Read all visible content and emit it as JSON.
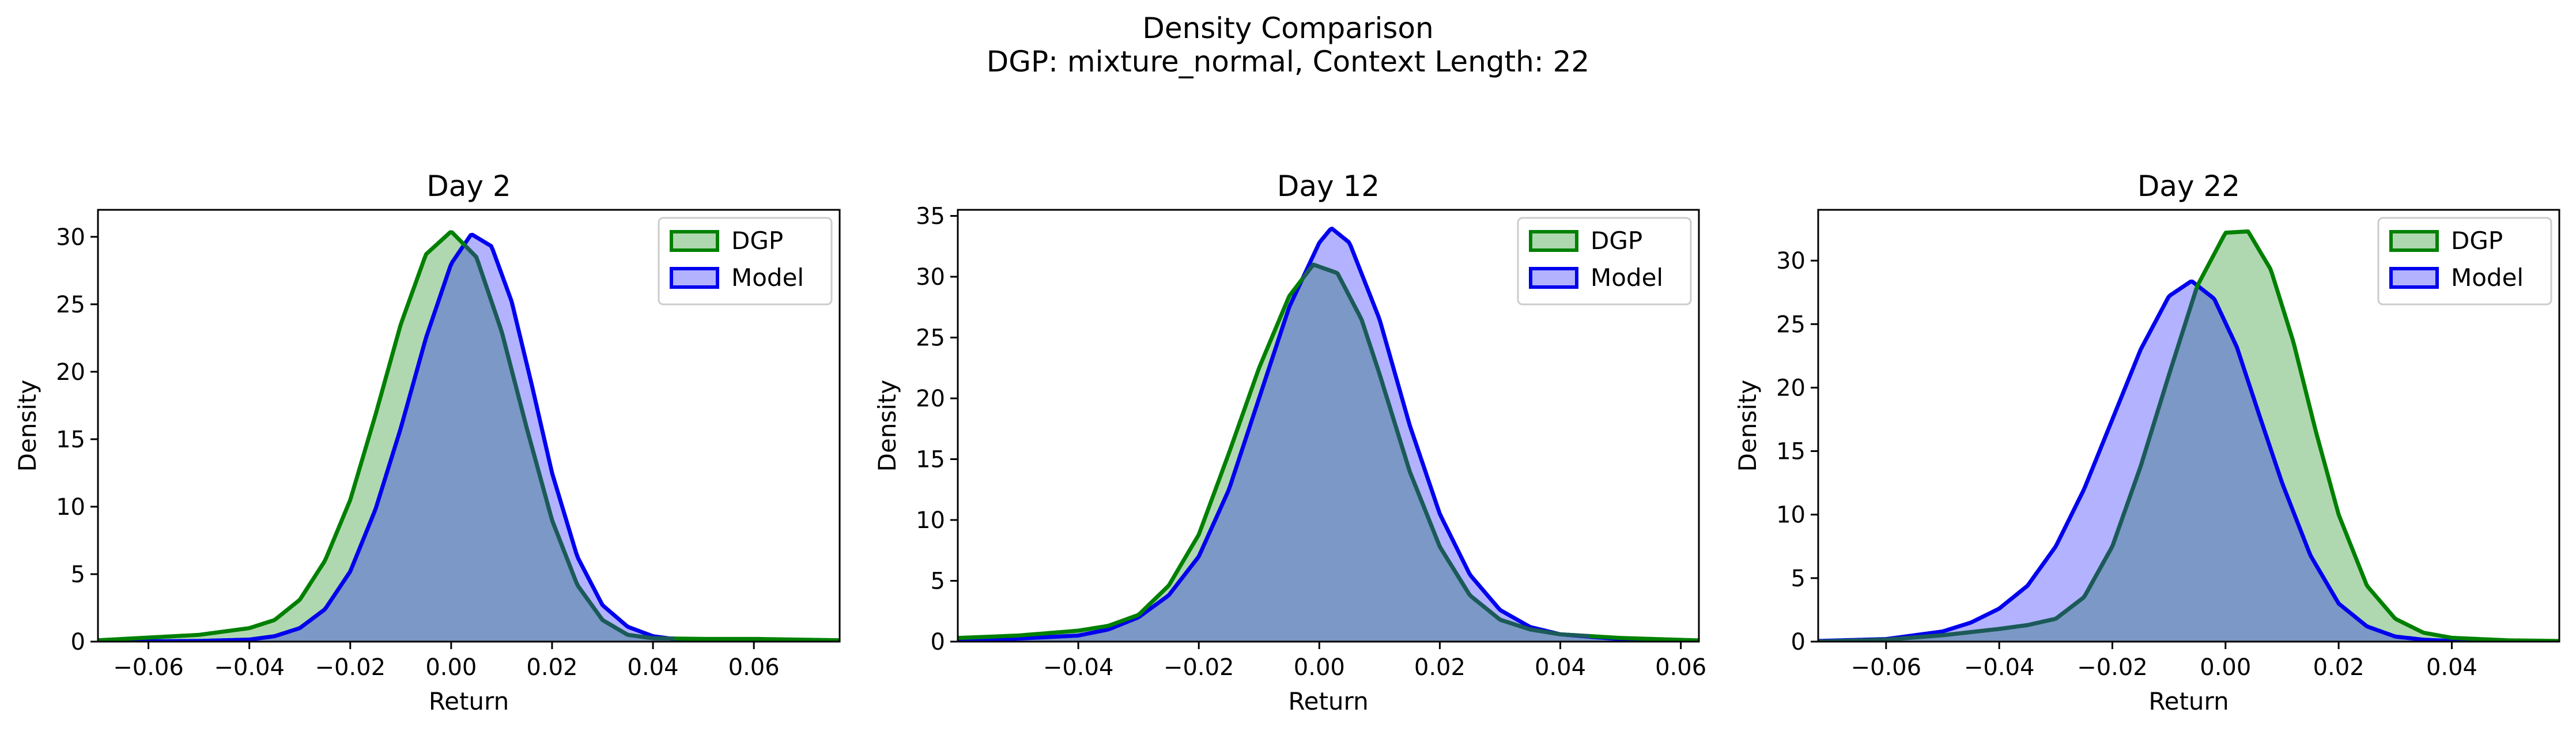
{
  "figure": {
    "title_line1": "Density Comparison",
    "title_line2": "DGP: mixture_normal, Context Length: 22"
  },
  "colors": {
    "dgp_line": "#008000",
    "dgp_fill": "#b0d8b0",
    "model_line": "#0000ee",
    "model_fill": "#b2b2ff",
    "overlap_fill": "#7b98c6",
    "overlap_line_dgp": "#1c5a5a"
  },
  "chart_data": [
    {
      "type": "area",
      "title": "Day 2",
      "xlabel": "Return",
      "ylabel": "Density",
      "xlim": [
        -0.07,
        0.077
      ],
      "ylim": [
        0,
        32
      ],
      "xticks": [
        -0.06,
        -0.04,
        -0.02,
        0.0,
        0.02,
        0.04,
        0.06
      ],
      "xtick_labels": [
        "−0.06",
        "−0.04",
        "−0.02",
        "0.00",
        "0.02",
        "0.04",
        "0.06"
      ],
      "yticks": [
        0,
        5,
        10,
        15,
        20,
        25,
        30
      ],
      "ytick_labels": [
        "0",
        "5",
        "10",
        "15",
        "20",
        "25",
        "30"
      ],
      "legend": {
        "position": "top-right",
        "entries": [
          "DGP",
          "Model"
        ]
      },
      "series": [
        {
          "name": "DGP",
          "x": [
            -0.07,
            -0.06,
            -0.05,
            -0.04,
            -0.035,
            -0.03,
            -0.025,
            -0.02,
            -0.015,
            -0.01,
            -0.005,
            0.0,
            0.005,
            0.01,
            0.015,
            0.02,
            0.025,
            0.03,
            0.035,
            0.04,
            0.05,
            0.06,
            0.077
          ],
          "y": [
            0.1,
            0.3,
            0.5,
            1.0,
            1.6,
            3.1,
            6.0,
            10.5,
            16.8,
            23.5,
            28.7,
            30.4,
            28.5,
            23.0,
            15.8,
            9.0,
            4.2,
            1.6,
            0.5,
            0.25,
            0.2,
            0.2,
            0.1
          ]
        },
        {
          "name": "Model",
          "x": [
            -0.07,
            -0.05,
            -0.04,
            -0.035,
            -0.03,
            -0.025,
            -0.02,
            -0.015,
            -0.01,
            -0.005,
            0.0,
            0.004,
            0.008,
            0.012,
            0.016,
            0.02,
            0.025,
            0.03,
            0.035,
            0.04,
            0.045,
            0.05,
            0.077
          ],
          "y": [
            0.0,
            0.05,
            0.15,
            0.4,
            1.0,
            2.4,
            5.2,
            9.8,
            15.8,
            22.5,
            28.0,
            30.2,
            29.3,
            25.2,
            19.0,
            12.5,
            6.3,
            2.7,
            1.1,
            0.4,
            0.15,
            0.05,
            0.0
          ]
        }
      ]
    },
    {
      "type": "area",
      "title": "Day 12",
      "xlabel": "Return",
      "ylabel": "Density",
      "xlim": [
        -0.06,
        0.063
      ],
      "ylim": [
        0,
        35.5
      ],
      "xticks": [
        -0.04,
        -0.02,
        0.0,
        0.02,
        0.04,
        0.06
      ],
      "xtick_labels": [
        "−0.04",
        "−0.02",
        "0.00",
        "0.02",
        "0.04",
        "0.06"
      ],
      "yticks": [
        0,
        5,
        10,
        15,
        20,
        25,
        30,
        35
      ],
      "ytick_labels": [
        "0",
        "5",
        "10",
        "15",
        "20",
        "25",
        "30",
        "35"
      ],
      "legend": {
        "position": "top-right",
        "entries": [
          "DGP",
          "Model"
        ]
      },
      "series": [
        {
          "name": "DGP",
          "x": [
            -0.06,
            -0.05,
            -0.04,
            -0.035,
            -0.03,
            -0.025,
            -0.02,
            -0.015,
            -0.01,
            -0.005,
            -0.001,
            0.003,
            0.007,
            0.01,
            0.015,
            0.02,
            0.025,
            0.03,
            0.035,
            0.04,
            0.05,
            0.063
          ],
          "y": [
            0.3,
            0.5,
            0.9,
            1.3,
            2.2,
            4.6,
            8.8,
            15.5,
            22.5,
            28.4,
            31.0,
            30.3,
            26.5,
            22.0,
            14.0,
            7.8,
            3.8,
            1.8,
            1.0,
            0.6,
            0.3,
            0.1
          ]
        },
        {
          "name": "Model",
          "x": [
            -0.06,
            -0.04,
            -0.035,
            -0.03,
            -0.025,
            -0.02,
            -0.015,
            -0.01,
            -0.005,
            0.0,
            0.002,
            0.005,
            0.01,
            0.015,
            0.02,
            0.025,
            0.03,
            0.035,
            0.04,
            0.05,
            0.063
          ],
          "y": [
            0.0,
            0.5,
            1.0,
            2.0,
            3.8,
            7.0,
            12.5,
            20.0,
            27.5,
            32.8,
            34.0,
            32.8,
            26.5,
            17.8,
            10.5,
            5.5,
            2.6,
            1.2,
            0.6,
            0.2,
            0.05
          ]
        }
      ]
    },
    {
      "type": "area",
      "title": "Day 22",
      "xlabel": "Return",
      "ylabel": "Density",
      "xlim": [
        -0.072,
        0.059
      ],
      "ylim": [
        0,
        34
      ],
      "xticks": [
        -0.06,
        -0.04,
        -0.02,
        0.0,
        0.02,
        0.04
      ],
      "xtick_labels": [
        "−0.06",
        "−0.04",
        "−0.02",
        "0.00",
        "0.02",
        "0.04"
      ],
      "yticks": [
        0,
        5,
        10,
        15,
        20,
        25,
        30
      ],
      "ytick_labels": [
        "0",
        "5",
        "10",
        "15",
        "20",
        "25",
        "30"
      ],
      "legend": {
        "position": "top-right",
        "entries": [
          "DGP",
          "Model"
        ]
      },
      "series": [
        {
          "name": "DGP",
          "x": [
            -0.072,
            -0.06,
            -0.05,
            -0.04,
            -0.035,
            -0.03,
            -0.025,
            -0.02,
            -0.015,
            -0.01,
            -0.005,
            0.0,
            0.004,
            0.008,
            0.012,
            0.016,
            0.02,
            0.025,
            0.03,
            0.035,
            0.04,
            0.05,
            0.059
          ],
          "y": [
            0.0,
            0.15,
            0.5,
            1.0,
            1.3,
            1.8,
            3.5,
            7.5,
            13.8,
            21.0,
            28.0,
            32.2,
            32.3,
            29.3,
            23.6,
            16.5,
            10.0,
            4.4,
            1.8,
            0.7,
            0.3,
            0.1,
            0.05
          ]
        },
        {
          "name": "Model",
          "x": [
            -0.072,
            -0.06,
            -0.05,
            -0.045,
            -0.04,
            -0.035,
            -0.03,
            -0.025,
            -0.02,
            -0.015,
            -0.01,
            -0.006,
            -0.002,
            0.002,
            0.006,
            0.01,
            0.015,
            0.02,
            0.025,
            0.03,
            0.035,
            0.04,
            0.059
          ],
          "y": [
            0.05,
            0.2,
            0.8,
            1.5,
            2.6,
            4.4,
            7.5,
            12.0,
            17.5,
            23.0,
            27.2,
            28.4,
            27.0,
            23.2,
            17.8,
            12.5,
            6.8,
            3.0,
            1.2,
            0.4,
            0.15,
            0.05,
            0.0
          ]
        }
      ]
    }
  ]
}
